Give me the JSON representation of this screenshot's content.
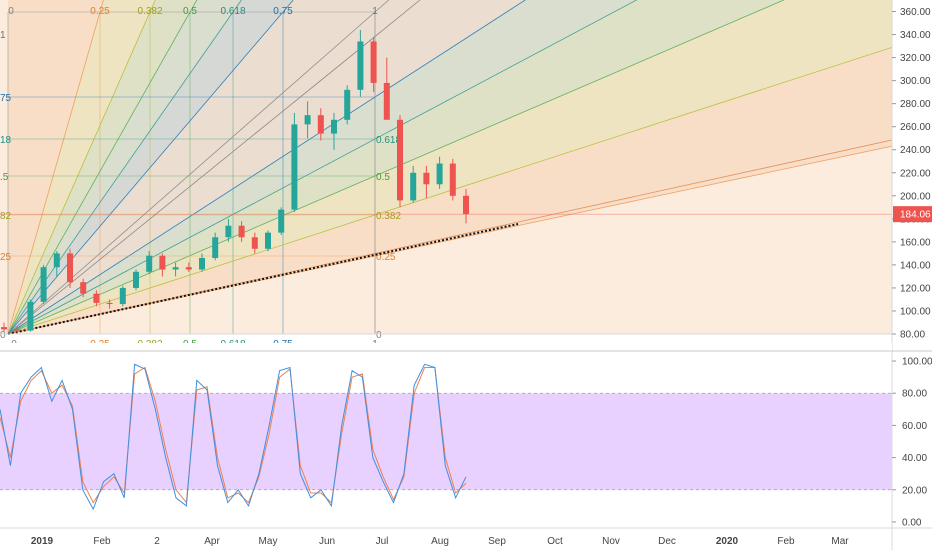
{
  "chart_data": {
    "type": "candlestick",
    "main": {
      "y_axis_ticks": [
        "80.00",
        "100.00",
        "120.00",
        "140.00",
        "160.00",
        "180.00",
        "200.00",
        "220.00",
        "240.00",
        "260.00",
        "280.00",
        "300.00",
        "320.00",
        "340.00",
        "360.00"
      ],
      "ylim": [
        80,
        370
      ],
      "last_price_label": "184.06",
      "last_price": 184.06,
      "candles_weekly_approx": [
        {
          "t": 0,
          "o": 86,
          "h": 90,
          "l": 82,
          "c": 84
        },
        {
          "t": 1,
          "o": 84,
          "h": 87,
          "l": 80,
          "c": 83
        },
        {
          "t": 2,
          "o": 83,
          "h": 110,
          "l": 82,
          "c": 108
        },
        {
          "t": 3,
          "o": 108,
          "h": 140,
          "l": 106,
          "c": 138
        },
        {
          "t": 4,
          "o": 138,
          "h": 152,
          "l": 130,
          "c": 150
        },
        {
          "t": 5,
          "o": 150,
          "h": 154,
          "l": 120,
          "c": 125
        },
        {
          "t": 6,
          "o": 125,
          "h": 128,
          "l": 112,
          "c": 115
        },
        {
          "t": 7,
          "o": 115,
          "h": 118,
          "l": 104,
          "c": 107
        },
        {
          "t": 8,
          "o": 107,
          "h": 110,
          "l": 102,
          "c": 106
        },
        {
          "t": 9,
          "o": 106,
          "h": 122,
          "l": 104,
          "c": 120
        },
        {
          "t": 10,
          "o": 120,
          "h": 136,
          "l": 118,
          "c": 134
        },
        {
          "t": 11,
          "o": 134,
          "h": 152,
          "l": 132,
          "c": 148
        },
        {
          "t": 12,
          "o": 148,
          "h": 150,
          "l": 130,
          "c": 136
        },
        {
          "t": 13,
          "o": 136,
          "h": 142,
          "l": 130,
          "c": 138
        },
        {
          "t": 14,
          "o": 138,
          "h": 142,
          "l": 134,
          "c": 136
        },
        {
          "t": 15,
          "o": 136,
          "h": 150,
          "l": 134,
          "c": 146
        },
        {
          "t": 16,
          "o": 146,
          "h": 168,
          "l": 144,
          "c": 164
        },
        {
          "t": 17,
          "o": 164,
          "h": 180,
          "l": 160,
          "c": 174
        },
        {
          "t": 18,
          "o": 174,
          "h": 178,
          "l": 160,
          "c": 164
        },
        {
          "t": 19,
          "o": 164,
          "h": 168,
          "l": 150,
          "c": 154
        },
        {
          "t": 20,
          "o": 154,
          "h": 170,
          "l": 152,
          "c": 168
        },
        {
          "t": 21,
          "o": 168,
          "h": 190,
          "l": 166,
          "c": 188
        },
        {
          "t": 22,
          "o": 188,
          "h": 272,
          "l": 186,
          "c": 262
        },
        {
          "t": 23,
          "o": 262,
          "h": 282,
          "l": 250,
          "c": 270
        },
        {
          "t": 24,
          "o": 270,
          "h": 276,
          "l": 248,
          "c": 254
        },
        {
          "t": 25,
          "o": 254,
          "h": 272,
          "l": 240,
          "c": 266
        },
        {
          "t": 26,
          "o": 266,
          "h": 296,
          "l": 262,
          "c": 292
        },
        {
          "t": 27,
          "o": 292,
          "h": 344,
          "l": 286,
          "c": 334
        },
        {
          "t": 28,
          "o": 334,
          "h": 338,
          "l": 290,
          "c": 298
        },
        {
          "t": 29,
          "o": 298,
          "h": 320,
          "l": 270,
          "c": 266
        },
        {
          "t": 30,
          "o": 266,
          "h": 270,
          "l": 190,
          "c": 196
        },
        {
          "t": 31,
          "o": 196,
          "h": 226,
          "l": 194,
          "c": 220
        },
        {
          "t": 32,
          "o": 220,
          "h": 226,
          "l": 198,
          "c": 210
        },
        {
          "t": 33,
          "o": 210,
          "h": 234,
          "l": 206,
          "c": 228
        },
        {
          "t": 34,
          "o": 228,
          "h": 232,
          "l": 196,
          "c": 200
        },
        {
          "t": 35,
          "o": 200,
          "h": 206,
          "l": 176,
          "c": 184
        }
      ]
    },
    "fib_fan_levels": [
      "0",
      "0.25",
      "0.382",
      "0.5",
      "0.618",
      "0.75",
      "1"
    ],
    "fan_colors": {
      "0.25": "#f0a060",
      "0.382": "#b8c040",
      "0.5": "#60b060",
      "0.618": "#40a090",
      "0.75": "#3080b8",
      "1": "#909090"
    },
    "oscillator": {
      "name": "stochastic",
      "y_axis_ticks": [
        "0.00",
        "20.00",
        "40.00",
        "60.00",
        "80.00",
        "100.00"
      ],
      "ylim": [
        -5,
        105
      ],
      "overbought": 80,
      "oversold": 20,
      "k_approx": [
        70,
        35,
        80,
        90,
        96,
        75,
        88,
        70,
        20,
        8,
        25,
        30,
        15,
        98,
        95,
        70,
        40,
        15,
        10,
        88,
        82,
        35,
        12,
        20,
        10,
        30,
        60,
        94,
        96,
        30,
        15,
        20,
        10,
        60,
        94,
        90,
        40,
        25,
        12,
        30,
        85,
        98,
        96,
        35,
        15,
        28
      ],
      "d_approx": [
        65,
        40,
        75,
        88,
        94,
        80,
        85,
        72,
        25,
        12,
        22,
        28,
        18,
        92,
        96,
        75,
        45,
        20,
        12,
        82,
        84,
        40,
        15,
        18,
        12,
        28,
        55,
        90,
        95,
        35,
        18,
        18,
        12,
        55,
        90,
        92,
        45,
        28,
        14,
        28,
        80,
        96,
        96,
        40,
        18,
        24
      ]
    },
    "x_axis_ticks": [
      "2019",
      "Feb",
      "2",
      "Apr",
      "May",
      "Jun",
      "Jul",
      "Aug",
      "Sep",
      "Oct",
      "Nov",
      "Dec",
      "2020",
      "Feb",
      "Mar"
    ]
  }
}
